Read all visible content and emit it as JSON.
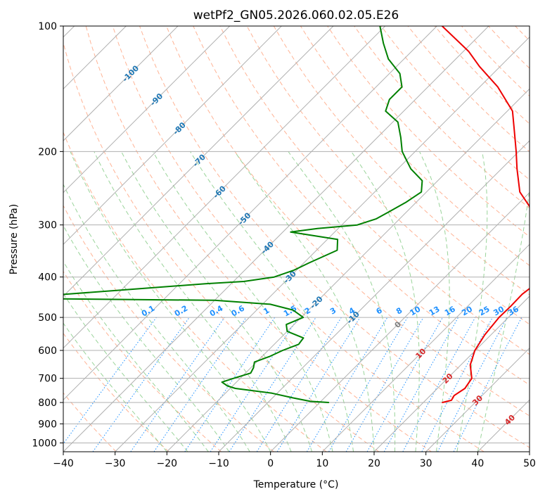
{
  "chart_data": {
    "type": "line",
    "title": "wetPf2_GN05.2026.060.02.05.E26",
    "xlabel": "Temperature (°C)",
    "ylabel": "Pressure (hPa)",
    "xlim": [
      -40,
      50
    ],
    "ylim": [
      1050,
      100
    ],
    "y_scale": "log",
    "skew": "skew-T",
    "grid": true,
    "x_ticks": [
      "−40",
      "−30",
      "−20",
      "−10",
      "0",
      "10",
      "20",
      "30",
      "40",
      "50"
    ],
    "x_tick_values": [
      -40,
      -30,
      -20,
      -10,
      0,
      10,
      20,
      30,
      40,
      50
    ],
    "y_ticks": [
      "100",
      "200",
      "300",
      "400",
      "500",
      "600",
      "700",
      "800",
      "900",
      "1000"
    ],
    "y_tick_values": [
      100,
      200,
      300,
      400,
      500,
      600,
      700,
      800,
      900,
      1000
    ],
    "series": [
      {
        "color": "#ee0000",
        "points": [
          {
            "p": 800,
            "t": 23.7
          },
          {
            "p": 790,
            "t": 25.0
          },
          {
            "p": 770,
            "t": 24.6
          },
          {
            "p": 740,
            "t": 25.3
          },
          {
            "p": 700,
            "t": 24.7
          },
          {
            "p": 650,
            "t": 21.8
          },
          {
            "p": 600,
            "t": 19.9
          },
          {
            "p": 550,
            "t": 18.8
          },
          {
            "p": 500,
            "t": 18.2
          },
          {
            "p": 470,
            "t": 18.3
          },
          {
            "p": 440,
            "t": 18.2
          },
          {
            "p": 420,
            "t": 18.7
          },
          {
            "p": 400,
            "t": 17.9
          },
          {
            "p": 370,
            "t": 16.0
          },
          {
            "p": 340,
            "t": 13.0
          },
          {
            "p": 300,
            "t": 8.4
          },
          {
            "p": 270,
            "t": 2.5
          },
          {
            "p": 250,
            "t": -2.0
          },
          {
            "p": 220,
            "t": -7.0
          },
          {
            "p": 200,
            "t": -10.5
          },
          {
            "p": 180,
            "t": -14.5
          },
          {
            "p": 160,
            "t": -19.0
          },
          {
            "p": 140,
            "t": -26.5
          },
          {
            "p": 125,
            "t": -34.0
          },
          {
            "p": 115,
            "t": -39.0
          },
          {
            "p": 100,
            "t": -49.0
          }
        ]
      },
      {
        "color": "#008000",
        "points": [
          {
            "p": 800,
            "t": 1.7
          },
          {
            "p": 795,
            "t": -2.0
          },
          {
            "p": 780,
            "t": -6.0
          },
          {
            "p": 760,
            "t": -11.0
          },
          {
            "p": 740,
            "t": -19.0
          },
          {
            "p": 730,
            "t": -21.0
          },
          {
            "p": 715,
            "t": -22.8
          },
          {
            "p": 700,
            "t": -21.3
          },
          {
            "p": 680,
            "t": -19.0
          },
          {
            "p": 660,
            "t": -19.5
          },
          {
            "p": 640,
            "t": -20.4
          },
          {
            "p": 620,
            "t": -18.5
          },
          {
            "p": 600,
            "t": -17.2
          },
          {
            "p": 580,
            "t": -15.3
          },
          {
            "p": 560,
            "t": -15.6
          },
          {
            "p": 540,
            "t": -20.0
          },
          {
            "p": 520,
            "t": -21.5
          },
          {
            "p": 500,
            "t": -19.6
          },
          {
            "p": 480,
            "t": -23.0
          },
          {
            "p": 465,
            "t": -28.5
          },
          {
            "p": 455,
            "t": -40.0
          },
          {
            "p": 450,
            "t": -80.0
          },
          {
            "p": 430,
            "t": -60.0
          },
          {
            "p": 415,
            "t": -45.0
          },
          {
            "p": 410,
            "t": -38.0
          },
          {
            "p": 400,
            "t": -33.0
          },
          {
            "p": 385,
            "t": -30.5
          },
          {
            "p": 370,
            "t": -29.0
          },
          {
            "p": 345,
            "t": -26.0
          },
          {
            "p": 325,
            "t": -28.0
          },
          {
            "p": 312,
            "t": -38.5
          },
          {
            "p": 306,
            "t": -34.0
          },
          {
            "p": 300,
            "t": -27.0
          },
          {
            "p": 290,
            "t": -24.5
          },
          {
            "p": 280,
            "t": -23.5
          },
          {
            "p": 265,
            "t": -22.0
          },
          {
            "p": 250,
            "t": -21.0
          },
          {
            "p": 235,
            "t": -23.0
          },
          {
            "p": 220,
            "t": -27.5
          },
          {
            "p": 200,
            "t": -32.5
          },
          {
            "p": 185,
            "t": -35.5
          },
          {
            "p": 170,
            "t": -39.0
          },
          {
            "p": 160,
            "t": -43.5
          },
          {
            "p": 150,
            "t": -45.0
          },
          {
            "p": 140,
            "t": -45.0
          },
          {
            "p": 130,
            "t": -48.0
          },
          {
            "p": 120,
            "t": -53.0
          },
          {
            "p": 110,
            "t": -57.0
          },
          {
            "p": 100,
            "t": -61.0
          }
        ]
      }
    ],
    "isotherm_labels": [
      "-100",
      "-90",
      "-80",
      "-70",
      "-60",
      "-50",
      "-40",
      "-30",
      "-20",
      "-10"
    ],
    "isotherm_values": [
      -100,
      -90,
      -80,
      -70,
      -60,
      -50,
      -40,
      -30,
      -20,
      -10
    ],
    "mixing_ratio_labels": [
      "0.1",
      "0.2",
      "0.4",
      "0.6",
      "1",
      "1.5",
      "2",
      "3",
      "4",
      "6",
      "8",
      "10",
      "13",
      "16",
      "20",
      "25",
      "30",
      "36"
    ],
    "mixing_ratio_values": [
      0.1,
      0.2,
      0.4,
      0.6,
      1,
      1.5,
      2,
      3,
      4,
      6,
      8,
      10,
      13,
      16,
      20,
      25,
      30,
      36
    ],
    "warm_isotherm_labels": [
      "0",
      "10",
      "20",
      "30",
      "40"
    ],
    "warm_isotherm_values": [
      0,
      10,
      20,
      30,
      40
    ],
    "colors": {
      "isotherm": "#b0b0b0",
      "isobar": "#b0b0b0",
      "dry_adiabat": "#ffa07a",
      "moist_adiabat": "#8fcf8f",
      "mixing_ratio": "#1e90ff",
      "cold_label": "#1f77b4",
      "zero_label": "#7f7f7f",
      "warm_label": "#d62728",
      "temperature": "#ee0000",
      "dewpoint": "#008000"
    }
  }
}
